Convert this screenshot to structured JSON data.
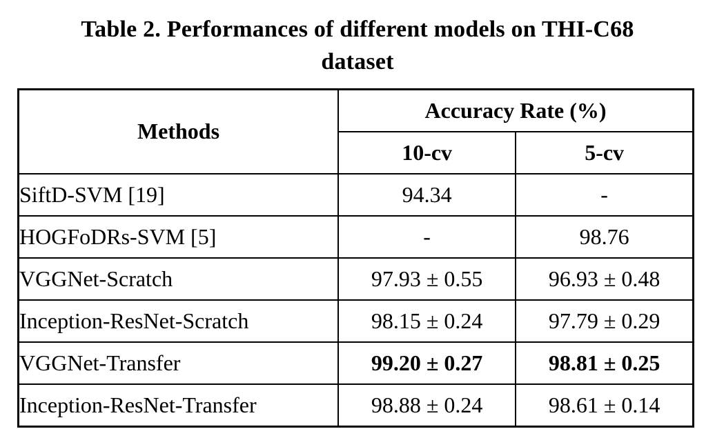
{
  "caption": {
    "line1": "Table 2. Performances of different models on THI-C68",
    "line2": "dataset"
  },
  "table": {
    "header": {
      "methods_label": "Methods",
      "group_label": "Accuracy Rate (%)",
      "col_10cv_label": "10-cv",
      "col_5cv_label": "5-cv"
    },
    "rows": [
      {
        "method": "SiftD-SVM [19]",
        "cv10": "94.34",
        "cv5": "-",
        "bold": false
      },
      {
        "method": "HOGFoDRs-SVM [5]",
        "cv10": "-",
        "cv5": "98.76",
        "bold": false
      },
      {
        "method": "VGGNet-Scratch",
        "cv10": "97.93 ± 0.55",
        "cv5": "96.93 ± 0.48",
        "bold": false
      },
      {
        "method": "Inception-ResNet-Scratch",
        "cv10": "98.15 ± 0.24",
        "cv5": "97.79 ± 0.29",
        "bold": false
      },
      {
        "method": "VGGNet-Transfer",
        "cv10": "99.20 ± 0.27",
        "cv5": "98.81 ± 0.25",
        "bold": true
      },
      {
        "method": "Inception-ResNet-Transfer",
        "cv10": "98.88 ± 0.24",
        "cv5": "98.61 ± 0.14",
        "bold": false
      }
    ]
  },
  "colors": {
    "text": "#000000",
    "background": "#ffffff",
    "border": "#000000"
  }
}
